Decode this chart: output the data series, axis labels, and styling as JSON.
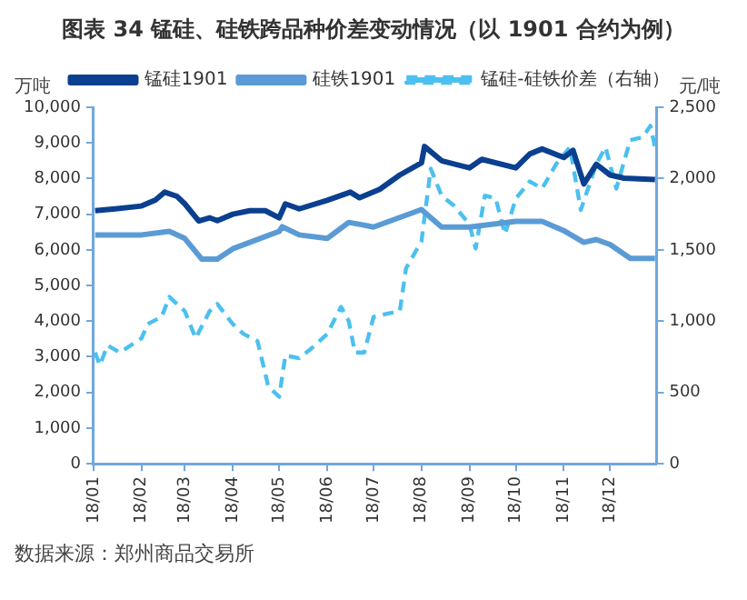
{
  "chart_data": {
    "type": "line",
    "title": "图表 34   锰硅、硅铁跨品种价差变动情况（以 1901 合约为例）",
    "ylabel": "万吨",
    "y2label": "元/吨",
    "annotations": [
      "数据来源：郑州商品交易所"
    ],
    "xlim": [
      "--01-01",
      "--12-31"
    ],
    "xticks": [
      {
        "value": "--01-01",
        "label": "18/01"
      },
      {
        "value": "--02-01",
        "label": "18/02"
      },
      {
        "value": "--03-01",
        "label": "18/03"
      },
      {
        "value": "--04-01",
        "label": "18/04"
      },
      {
        "value": "--05-01",
        "label": "18/05"
      },
      {
        "value": "--06-01",
        "label": "18/06"
      },
      {
        "value": "--07-01",
        "label": "18/07"
      },
      {
        "value": "--08-01",
        "label": "18/08"
      },
      {
        "value": "--09-01",
        "label": "18/09"
      },
      {
        "value": "--10-01",
        "label": "18/10"
      },
      {
        "value": "--11-01",
        "label": "18/11"
      },
      {
        "value": "--12-01",
        "label": "18/12"
      }
    ],
    "ylim": [
      0,
      10000
    ],
    "yticks": [
      0,
      {
        "value": 1000,
        "label": "1,000"
      },
      {
        "value": 2000,
        "label": "2,000"
      },
      {
        "value": 3000,
        "label": "3,000"
      },
      {
        "value": 4000,
        "label": "4,000"
      },
      {
        "value": 5000,
        "label": "5,000"
      },
      {
        "value": 6000,
        "label": "6,000"
      },
      {
        "value": 7000,
        "label": "7,000"
      },
      {
        "value": 8000,
        "label": "8,000"
      },
      {
        "value": 9000,
        "label": "9,000"
      },
      {
        "value": 10000,
        "label": "10,000"
      }
    ],
    "y2lim": [
      0,
      2500
    ],
    "y2ticks": [
      0,
      500,
      {
        "value": 1000,
        "label": "1,000"
      },
      {
        "value": 1500,
        "label": "1,500"
      },
      {
        "value": 2000,
        "label": "2,000"
      },
      {
        "value": 2500,
        "label": "2,500"
      }
    ],
    "grid": false,
    "legend": "top",
    "marker": "none",
    "series": [
      {
        "name": "锰硅1901",
        "color": "#0b3f8f",
        "line_style": "solid",
        "x": [
          "--01-02",
          "--01-15",
          "--02-01",
          "--02-10",
          "--02-16",
          "--02-24",
          "--03-01",
          "--03-10",
          "--03-17",
          "--03-22",
          "--04-01",
          "--04-12",
          "--04-22",
          "--05-01",
          "--05-05",
          "--05-14",
          "--06-01",
          "--06-16",
          "--06-22",
          "--07-05",
          "--07-18",
          "--08-01",
          "--08-03",
          "--08-14",
          "--09-01",
          "--09-09",
          "--10-01",
          "--10-10",
          "--10-18",
          "--11-01",
          "--11-07",
          "--11-14",
          "--11-22",
          "--12-01",
          "--12-10",
          "--12-30"
        ],
        "values": [
          7100,
          7150,
          7230,
          7400,
          7620,
          7500,
          7290,
          6810,
          6900,
          6820,
          7000,
          7100,
          7100,
          6900,
          7290,
          7150,
          7390,
          7620,
          7460,
          7700,
          8100,
          8440,
          8900,
          8500,
          8300,
          8540,
          8300,
          8690,
          8830,
          8590,
          8790,
          7850,
          8400,
          8100,
          8010,
          7970
        ]
      },
      {
        "name": "硅铁1901",
        "color": "#5b9bd5",
        "line_style": "solid",
        "x": [
          "--01-02",
          "--02-01",
          "--02-19",
          "--03-01",
          "--03-12",
          "--03-22",
          "--04-01",
          "--05-01",
          "--05-03",
          "--05-14",
          "--06-01",
          "--06-15",
          "--06-24",
          "--07-01",
          "--08-01",
          "--08-14",
          "--09-01",
          "--10-01",
          "--10-18",
          "--11-01",
          "--11-14",
          "--11-22",
          "--12-01",
          "--12-14",
          "--12-30"
        ],
        "values": [
          6420,
          6420,
          6520,
          6320,
          5740,
          5740,
          6030,
          6520,
          6650,
          6420,
          6320,
          6770,
          6700,
          6640,
          7130,
          6640,
          6640,
          6800,
          6800,
          6540,
          6210,
          6290,
          6150,
          5760,
          5760
        ]
      },
      {
        "name": "锰硅-硅铁价差（右轴）",
        "color": "#4cc0f0",
        "line_style": "dashed",
        "axis": "y2",
        "x": [
          "--01-02",
          "--01-05",
          "--01-10",
          "--01-18",
          "--02-01",
          "--02-05",
          "--02-14",
          "--02-19",
          "--03-01",
          "--03-08",
          "--03-17",
          "--03-22",
          "--04-01",
          "--04-08",
          "--04-17",
          "--04-24",
          "--05-01",
          "--05-05",
          "--05-14",
          "--05-22",
          "--06-01",
          "--06-10",
          "--06-15",
          "--06-19",
          "--06-25",
          "--07-01",
          "--07-09",
          "--07-18",
          "--07-22",
          "--08-01",
          "--08-07",
          "--08-14",
          "--08-22",
          "--09-01",
          "--09-05",
          "--09-11",
          "--09-18",
          "--09-24",
          "--10-01",
          "--10-10",
          "--10-18",
          "--10-27",
          "--11-05",
          "--11-12",
          "--11-22",
          "--11-28",
          "--12-05",
          "--12-14",
          "--12-22",
          "--12-27",
          "--12-30"
        ],
        "values": [
          780,
          690,
          830,
          780,
          880,
          980,
          1030,
          1170,
          1070,
          880,
          1070,
          1120,
          980,
          910,
          860,
          540,
          470,
          760,
          740,
          810,
          910,
          1100,
          1000,
          780,
          780,
          1030,
          1050,
          1070,
          1370,
          1560,
          2070,
          1880,
          1810,
          1680,
          1510,
          1880,
          1860,
          1610,
          1860,
          1980,
          1930,
          2100,
          2220,
          1780,
          2100,
          2220,
          1930,
          2270,
          2290,
          2370,
          2220
        ]
      }
    ]
  }
}
